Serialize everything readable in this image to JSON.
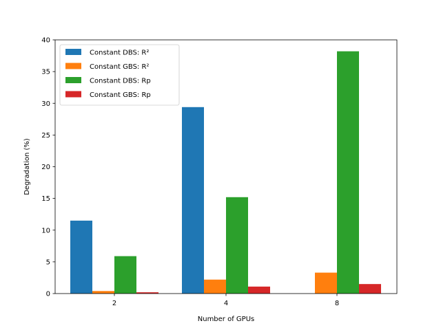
{
  "chart_data": {
    "type": "bar",
    "title": "",
    "xlabel": "Number of GPUs",
    "ylabel": "Degradation (%)",
    "categories": [
      "2",
      "4",
      "8"
    ],
    "ylim": [
      0,
      40
    ],
    "yticks": [
      0,
      5,
      10,
      15,
      20,
      25,
      30,
      35,
      40
    ],
    "grid": false,
    "legend_position": "top-left",
    "series": [
      {
        "name": "Constant DBS: R²",
        "color": "#1f77b4",
        "values": [
          11.5,
          29.4,
          0
        ]
      },
      {
        "name": "Constant GBS: R²",
        "color": "#ff7f0e",
        "values": [
          0.4,
          2.2,
          3.3
        ]
      },
      {
        "name": "Constant DBS: Rp",
        "color": "#2ca02c",
        "values": [
          5.9,
          15.2,
          38.2
        ]
      },
      {
        "name": "Constant GBS: Rp",
        "color": "#d62728",
        "values": [
          0.2,
          1.1,
          1.5
        ]
      }
    ]
  }
}
